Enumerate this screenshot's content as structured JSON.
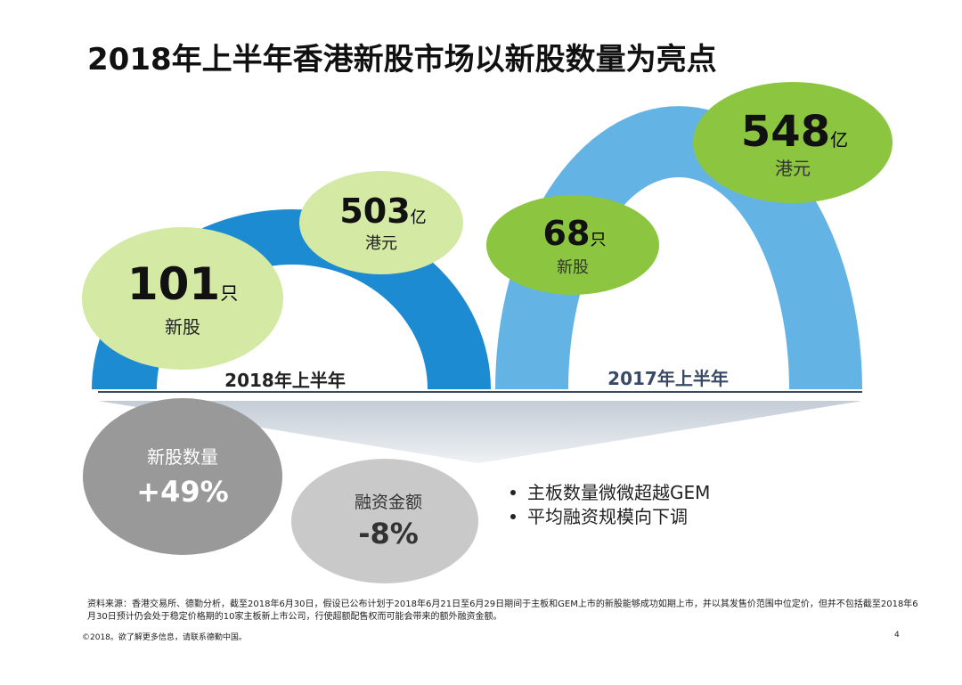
{
  "title": "2018年上半年香港新股市场以新股数量为亮点",
  "periods": [
    {
      "label": "2018年上半年",
      "count": {
        "value": 101,
        "unit": "只",
        "label": "新股"
      },
      "amount": {
        "value": 503,
        "unit": "亿",
        "label": "港元"
      }
    },
    {
      "label": "2017年上半年",
      "count": {
        "value": 68,
        "unit": "只",
        "label": "新股"
      },
      "amount": {
        "value": 548,
        "unit": "亿",
        "label": "港元"
      }
    }
  ],
  "changes": [
    {
      "label": "新股数量",
      "value": "+49%"
    },
    {
      "label": "融资金额",
      "value": "-8%"
    }
  ],
  "bullets": [
    "主板数量微微超越GEM",
    "平均融资规模向下调"
  ],
  "source": "资料来源：香港交易所、德勤分析，截至2018年6月30日，假设已公布计划于2018年6月21日至6月29日期间于主板和GEM上市的新股能够成功如期上市，并以其发售价范围中位定价，但并不包括截至2018年6月30日预计仍会处于稳定价格期的10家主板新上市公司，行使超额配售权而可能会带来的额外融资金额。",
  "copyright": "©2018。欲了解更多信息，请联系德勤中国。",
  "page": "4"
}
